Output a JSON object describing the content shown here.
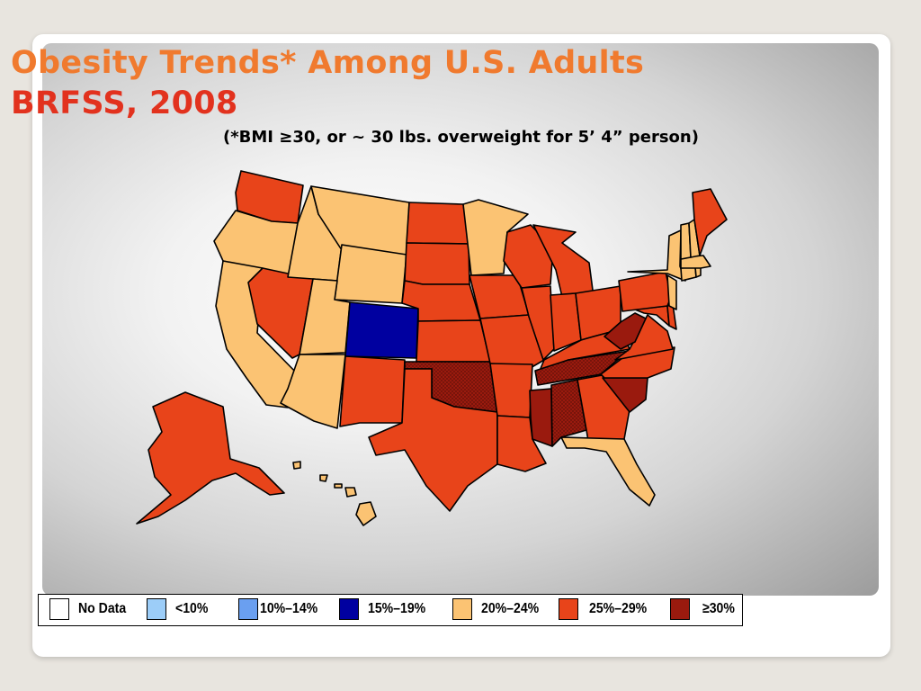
{
  "title": {
    "line1": "Obesity Trends* Among U.S. Adults",
    "line2": "BRFSS, 2008",
    "line1_color": "#f07a2e",
    "line2_color": "#e2321e"
  },
  "subtitle": "(*BMI ≥30, or ~ 30 lbs. overweight for 5’ 4” person)",
  "colors": {
    "no_data": "#ffffff",
    "lt10": "#9ccdf8",
    "p10_14": "#6a9ff0",
    "p15_19": "#0000a0",
    "p20_24": "#fbc373",
    "p25_29": "#e8441a",
    "ge30": "#9a1a0e",
    "outline": "#000000",
    "panel_gradient": [
      "#ffffff",
      "#9c9c9c"
    ]
  },
  "legend": [
    {
      "label": "No Data",
      "color": "#ffffff"
    },
    {
      "label": "<10%",
      "color": "#9ccdf8"
    },
    {
      "label": "10%–14%",
      "color": "#6a9ff0"
    },
    {
      "label": "15%–19%",
      "color": "#0000a0"
    },
    {
      "label": "20%–24%",
      "color": "#fbc373"
    },
    {
      "label": "25%–29%",
      "color": "#e8441a"
    },
    {
      "label": "≥30%",
      "color": "#9a1a0e"
    }
  ],
  "state_categories": {
    "p15_19": [
      "CO"
    ],
    "p20_24": [
      "OR",
      "ID",
      "MT",
      "WY",
      "UT",
      "CA",
      "AZ",
      "MN",
      "FL",
      "NY",
      "VT",
      "NH",
      "MA",
      "CT",
      "RI",
      "NJ",
      "ME_south",
      "HI"
    ],
    "p25_29": [
      "WA",
      "NV",
      "NM",
      "TX",
      "ND",
      "SD",
      "NE",
      "KS",
      "IA",
      "MO",
      "AR",
      "LA",
      "WI",
      "MI",
      "IL",
      "IN",
      "OH",
      "KY",
      "PA",
      "VA",
      "NC",
      "GA",
      "ME",
      "DE",
      "MD",
      "AK"
    ],
    "ge30": [
      "OK",
      "TN",
      "MS",
      "AL",
      "SC",
      "WV"
    ]
  }
}
